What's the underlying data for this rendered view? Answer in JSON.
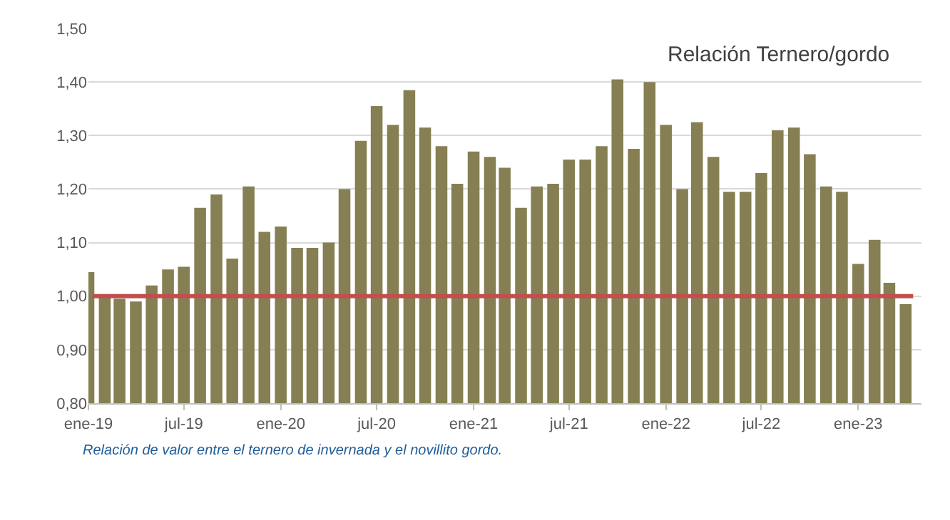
{
  "chart_data": {
    "type": "bar",
    "title": "Relación Ternero/gordo",
    "x": [
      "2019-01",
      "2019-02",
      "2019-03",
      "2019-04",
      "2019-05",
      "2019-06",
      "2019-07",
      "2019-08",
      "2019-09",
      "2019-10",
      "2019-11",
      "2019-12",
      "2020-01",
      "2020-02",
      "2020-03",
      "2020-04",
      "2020-05",
      "2020-06",
      "2020-07",
      "2020-08",
      "2020-09",
      "2020-10",
      "2020-11",
      "2020-12",
      "2021-01",
      "2021-02",
      "2021-03",
      "2021-04",
      "2021-05",
      "2021-06",
      "2021-07",
      "2021-08",
      "2021-09",
      "2021-10",
      "2021-11",
      "2021-12",
      "2022-01",
      "2022-02",
      "2022-03",
      "2022-04",
      "2022-05",
      "2022-06",
      "2022-07",
      "2022-08",
      "2022-09",
      "2022-10",
      "2022-11",
      "2022-12",
      "2023-01",
      "2023-02",
      "2023-03",
      "2023-04"
    ],
    "values": [
      1.045,
      1.0,
      0.995,
      0.99,
      1.02,
      1.05,
      1.055,
      1.165,
      1.19,
      1.07,
      1.205,
      1.12,
      1.13,
      1.09,
      1.09,
      1.1,
      1.2,
      1.29,
      1.355,
      1.32,
      1.385,
      1.315,
      1.28,
      1.21,
      1.27,
      1.26,
      1.24,
      1.165,
      1.205,
      1.21,
      1.255,
      1.255,
      1.28,
      1.405,
      1.275,
      1.4,
      1.32,
      1.2,
      1.325,
      1.26,
      1.195,
      1.195,
      1.23,
      1.31,
      1.315,
      1.265,
      1.205,
      1.195,
      1.06,
      1.105,
      1.025,
      0.985
    ],
    "color": "#857f53",
    "xlim": [
      "2019-01",
      "2023-05"
    ],
    "xticks": [
      {
        "value": "2019-01",
        "label": "ene-19"
      },
      {
        "value": "2019-07",
        "label": "jul-19"
      },
      {
        "value": "2020-01",
        "label": "ene-20"
      },
      {
        "value": "2020-07",
        "label": "jul-20"
      },
      {
        "value": "2021-01",
        "label": "ene-21"
      },
      {
        "value": "2021-07",
        "label": "jul-21"
      },
      {
        "value": "2022-01",
        "label": "ene-22"
      },
      {
        "value": "2022-07",
        "label": "jul-22"
      },
      {
        "value": "2023-01",
        "label": "ene-23"
      }
    ],
    "ylim": [
      0.8,
      1.5
    ],
    "yticks": [
      {
        "value": 0.8,
        "label": "0,80"
      },
      {
        "value": 0.9,
        "label": "0,90"
      },
      {
        "value": 1.0,
        "label": "1,00"
      },
      {
        "value": 1.1,
        "label": "1,10"
      },
      {
        "value": 1.2,
        "label": "1,20"
      },
      {
        "value": 1.3,
        "label": "1,30"
      },
      {
        "value": 1.4,
        "label": "1,40"
      },
      {
        "value": 1.5,
        "label": "1,50"
      }
    ],
    "grid": "y",
    "ref_lines": [
      {
        "axis": "y",
        "value": 1.0,
        "color": "#c0504d"
      }
    ],
    "annotations": [
      "Relación de valor entre el ternero de invernada y el novillito gordo."
    ]
  }
}
